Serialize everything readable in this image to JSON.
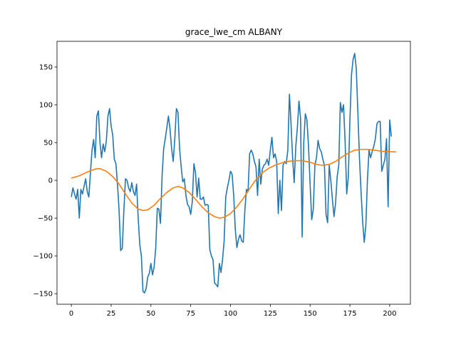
{
  "chart_data": {
    "type": "line",
    "title": "grace_lwe_cm ALBANY",
    "xlabel": "",
    "ylabel": "",
    "xlim": [
      -9,
      213
    ],
    "ylim": [
      -164,
      184
    ],
    "xticks": [
      0,
      25,
      50,
      75,
      100,
      125,
      150,
      175,
      200
    ],
    "yticks": [
      -150,
      -100,
      -50,
      0,
      50,
      100,
      150
    ],
    "grid": false,
    "series": [
      {
        "color": "#1f77b4",
        "points": [
          [
            0,
            -22
          ],
          [
            1,
            -10
          ],
          [
            2,
            -18
          ],
          [
            3,
            -25
          ],
          [
            4,
            -12
          ],
          [
            5,
            -50
          ],
          [
            6,
            -12
          ],
          [
            7,
            -18
          ],
          [
            8,
            -8
          ],
          [
            9,
            2
          ],
          [
            10,
            -15
          ],
          [
            11,
            -22
          ],
          [
            12,
            10
          ],
          [
            13,
            40
          ],
          [
            14,
            54
          ],
          [
            15,
            30
          ],
          [
            16,
            85
          ],
          [
            17,
            92
          ],
          [
            18,
            50
          ],
          [
            19,
            30
          ],
          [
            20,
            48
          ],
          [
            21,
            38
          ],
          [
            22,
            52
          ],
          [
            23,
            85
          ],
          [
            24,
            95
          ],
          [
            25,
            72
          ],
          [
            26,
            60
          ],
          [
            27,
            28
          ],
          [
            28,
            22
          ],
          [
            29,
            -5
          ],
          [
            30,
            -40
          ],
          [
            31,
            -93
          ],
          [
            32,
            -90
          ],
          [
            33,
            -40
          ],
          [
            34,
            2
          ],
          [
            35,
            0
          ],
          [
            36,
            -10
          ],
          [
            37,
            -15
          ],
          [
            38,
            -3
          ],
          [
            39,
            -15
          ],
          [
            40,
            -20
          ],
          [
            41,
            -5
          ],
          [
            42,
            -50
          ],
          [
            43,
            -85
          ],
          [
            44,
            -100
          ],
          [
            45,
            -147
          ],
          [
            46,
            -149
          ],
          [
            47,
            -143
          ],
          [
            48,
            -128
          ],
          [
            49,
            -123
          ],
          [
            50,
            -110
          ],
          [
            51,
            -125
          ],
          [
            52,
            -115
          ],
          [
            53,
            -90
          ],
          [
            54,
            -37
          ],
          [
            55,
            -38
          ],
          [
            56,
            -57
          ],
          [
            57,
            5
          ],
          [
            58,
            42
          ],
          [
            59,
            55
          ],
          [
            60,
            70
          ],
          [
            61,
            85
          ],
          [
            62,
            68
          ],
          [
            63,
            42
          ],
          [
            64,
            25
          ],
          [
            65,
            55
          ],
          [
            66,
            95
          ],
          [
            67,
            90
          ],
          [
            68,
            42
          ],
          [
            69,
            18
          ],
          [
            70,
            -2
          ],
          [
            71,
            2
          ],
          [
            72,
            -20
          ],
          [
            73,
            -32
          ],
          [
            74,
            -35
          ],
          [
            75,
            -45
          ],
          [
            76,
            -28
          ],
          [
            77,
            22
          ],
          [
            78,
            10
          ],
          [
            79,
            -22
          ],
          [
            80,
            3
          ],
          [
            81,
            -25
          ],
          [
            82,
            -25
          ],
          [
            83,
            -22
          ],
          [
            84,
            -33
          ],
          [
            85,
            -32
          ],
          [
            86,
            -33
          ],
          [
            87,
            -92
          ],
          [
            88,
            -100
          ],
          [
            89,
            -105
          ],
          [
            90,
            -136
          ],
          [
            91,
            -138
          ],
          [
            92,
            -141
          ],
          [
            93,
            -110
          ],
          [
            94,
            -122
          ],
          [
            95,
            -105
          ],
          [
            96,
            -80
          ],
          [
            97,
            -22
          ],
          [
            98,
            -10
          ],
          [
            99,
            0
          ],
          [
            100,
            12
          ],
          [
            101,
            8
          ],
          [
            102,
            -20
          ],
          [
            103,
            -65
          ],
          [
            104,
            -89
          ],
          [
            105,
            -78
          ],
          [
            106,
            -72
          ],
          [
            107,
            -80
          ],
          [
            108,
            -82
          ],
          [
            109,
            -40
          ],
          [
            110,
            -12
          ],
          [
            111,
            -15
          ],
          [
            112,
            35
          ],
          [
            113,
            40
          ],
          [
            114,
            35
          ],
          [
            115,
            25
          ],
          [
            116,
            18
          ],
          [
            117,
            -20
          ],
          [
            118,
            28
          ],
          [
            119,
            -5
          ],
          [
            120,
            15
          ],
          [
            121,
            20
          ],
          [
            122,
            22
          ],
          [
            123,
            28
          ],
          [
            124,
            20
          ],
          [
            125,
            40
          ],
          [
            126,
            57
          ],
          [
            127,
            30
          ],
          [
            128,
            35
          ],
          [
            129,
            25
          ],
          [
            130,
            -44
          ],
          [
            131,
            0
          ],
          [
            132,
            -40
          ],
          [
            133,
            20
          ],
          [
            134,
            25
          ],
          [
            135,
            22
          ],
          [
            136,
            40
          ],
          [
            137,
            114
          ],
          [
            138,
            75
          ],
          [
            139,
            30
          ],
          [
            140,
            -3
          ],
          [
            141,
            45
          ],
          [
            142,
            70
          ],
          [
            143,
            105
          ],
          [
            144,
            82
          ],
          [
            145,
            -75
          ],
          [
            146,
            50
          ],
          [
            147,
            88
          ],
          [
            148,
            80
          ],
          [
            149,
            45
          ],
          [
            150,
            -5
          ],
          [
            151,
            -52
          ],
          [
            152,
            -38
          ],
          [
            153,
            20
          ],
          [
            154,
            30
          ],
          [
            155,
            53
          ],
          [
            156,
            42
          ],
          [
            157,
            38
          ],
          [
            158,
            28
          ],
          [
            159,
            20
          ],
          [
            160,
            -45
          ],
          [
            161,
            -56
          ],
          [
            162,
            20
          ],
          [
            163,
            0
          ],
          [
            164,
            -25
          ],
          [
            165,
            -48
          ],
          [
            166,
            -30
          ],
          [
            167,
            5
          ],
          [
            168,
            20
          ],
          [
            169,
            103
          ],
          [
            170,
            90
          ],
          [
            171,
            100
          ],
          [
            172,
            50
          ],
          [
            173,
            -18
          ],
          [
            174,
            5
          ],
          [
            175,
            80
          ],
          [
            176,
            140
          ],
          [
            177,
            160
          ],
          [
            178,
            168
          ],
          [
            179,
            148
          ],
          [
            180,
            90
          ],
          [
            181,
            30
          ],
          [
            182,
            -15
          ],
          [
            183,
            -55
          ],
          [
            184,
            -82
          ],
          [
            185,
            -60
          ],
          [
            186,
            0
          ],
          [
            187,
            40
          ],
          [
            188,
            30
          ],
          [
            189,
            38
          ],
          [
            190,
            45
          ],
          [
            191,
            55
          ],
          [
            192,
            75
          ],
          [
            193,
            78
          ],
          [
            194,
            78
          ],
          [
            195,
            12
          ],
          [
            196,
            20
          ],
          [
            197,
            28
          ],
          [
            198,
            55
          ],
          [
            199,
            -35
          ],
          [
            200,
            80
          ],
          [
            201,
            58
          ]
        ]
      },
      {
        "color": "#ff7f0e",
        "points": [
          [
            0,
            3
          ],
          [
            5,
            6
          ],
          [
            10,
            11
          ],
          [
            15,
            15
          ],
          [
            18,
            15.5
          ],
          [
            22,
            12
          ],
          [
            26,
            5
          ],
          [
            30,
            -5
          ],
          [
            34,
            -18
          ],
          [
            38,
            -30
          ],
          [
            42,
            -38
          ],
          [
            45,
            -40
          ],
          [
            48,
            -39
          ],
          [
            52,
            -33
          ],
          [
            56,
            -24
          ],
          [
            60,
            -16
          ],
          [
            64,
            -10
          ],
          [
            67,
            -8
          ],
          [
            70,
            -10
          ],
          [
            74,
            -16
          ],
          [
            78,
            -25
          ],
          [
            82,
            -35
          ],
          [
            86,
            -43
          ],
          [
            90,
            -48
          ],
          [
            93,
            -50
          ],
          [
            96,
            -49
          ],
          [
            100,
            -44
          ],
          [
            104,
            -35
          ],
          [
            108,
            -24
          ],
          [
            112,
            -11
          ],
          [
            116,
            1
          ],
          [
            120,
            10
          ],
          [
            124,
            16
          ],
          [
            128,
            20
          ],
          [
            132,
            23
          ],
          [
            136,
            25
          ],
          [
            140,
            26
          ],
          [
            145,
            26
          ],
          [
            150,
            24
          ],
          [
            154,
            21
          ],
          [
            158,
            20
          ],
          [
            162,
            21
          ],
          [
            166,
            25
          ],
          [
            170,
            31
          ],
          [
            174,
            36
          ],
          [
            178,
            40
          ],
          [
            182,
            41
          ],
          [
            186,
            41
          ],
          [
            190,
            40
          ],
          [
            195,
            38.5
          ],
          [
            200,
            38
          ],
          [
            204,
            37.5
          ]
        ]
      }
    ]
  }
}
